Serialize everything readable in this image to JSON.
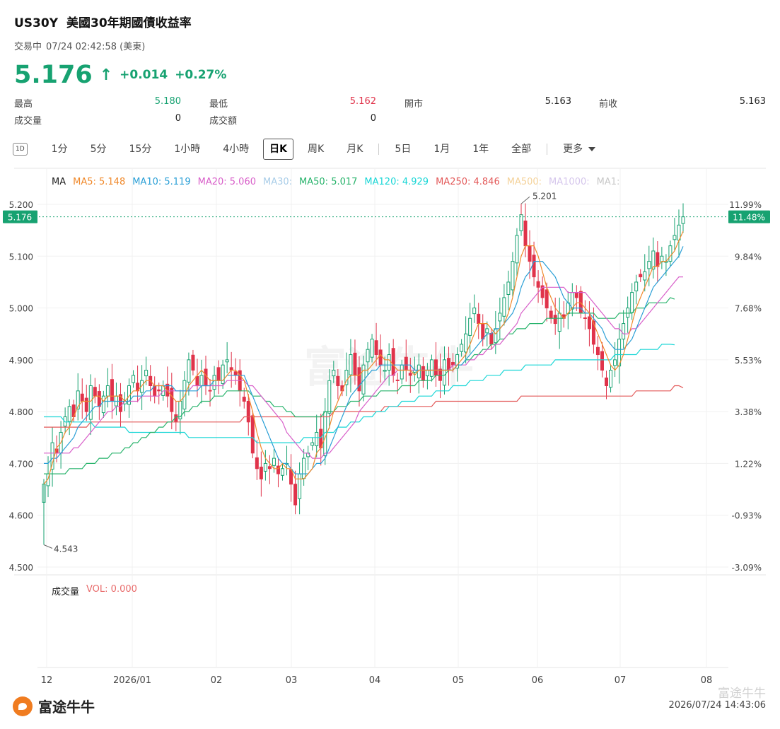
{
  "header": {
    "symbol": "US30Y",
    "name": "美國30年期國債收益率",
    "status": "交易中",
    "time": "07/24 02:42:58 (美東)",
    "price": "5.176",
    "change": "+0.014",
    "change_pct": "+0.27%",
    "up_color": "#17a271",
    "down_color": "#e0334a"
  },
  "stats": {
    "high_label": "最高",
    "high": "5.180",
    "low_label": "最低",
    "low": "5.162",
    "open_label": "開市",
    "open": "5.163",
    "prev_label": "前收",
    "prev": "5.163",
    "volume_label": "成交量",
    "volume": "0",
    "turnover_label": "成交額",
    "turnover": "0"
  },
  "periods": {
    "icon": "1D",
    "items": [
      "1分",
      "5分",
      "15分",
      "1小時",
      "4小時",
      "日K",
      "周K",
      "月K",
      "5日",
      "1月",
      "1年",
      "全部"
    ],
    "active": "日K",
    "more": "更多"
  },
  "legend": {
    "ma_label": "MA",
    "items": [
      {
        "text": "MA5: 5.148",
        "color": "#f0892b"
      },
      {
        "text": "MA10: 5.119",
        "color": "#2a9fd6"
      },
      {
        "text": "MA20: 5.060",
        "color": "#d85ec9"
      },
      {
        "text": "MA30:",
        "color": "#a9cde8"
      },
      {
        "text": "MA50: 5.017",
        "color": "#27b36b"
      },
      {
        "text": "MA120: 4.929",
        "color": "#19d6d6"
      },
      {
        "text": "MA250: 4.846",
        "color": "#e35a5a"
      },
      {
        "text": "MA500:",
        "color": "#f4d29a"
      },
      {
        "text": "MA1000:",
        "color": "#d5c6ec"
      },
      {
        "text": "MA1:",
        "color": "#c8c8c8"
      }
    ]
  },
  "volume": {
    "label": "成交量",
    "value": "VOL: 0.000",
    "color": "#e86a6a"
  },
  "chart_data": {
    "type": "candlestick",
    "y_left_ticks": [
      "5.200",
      "5.100",
      "5.000",
      "4.900",
      "4.800",
      "4.700",
      "4.600",
      "4.500"
    ],
    "y_left_values": [
      5.2,
      5.1,
      5.0,
      4.9,
      4.8,
      4.7,
      4.6,
      4.5
    ],
    "y_right_ticks": [
      "11.99%",
      "9.84%",
      "7.68%",
      "5.53%",
      "3.38%",
      "1.22%",
      "-0.93%",
      "-3.09%"
    ],
    "ylim": [
      4.5,
      5.2
    ],
    "x_ticks": [
      "12",
      "2026/01",
      "02",
      "03",
      "04",
      "05",
      "06",
      "07",
      "08"
    ],
    "current_price_label": "5.176",
    "current_pct_label": "11.48%",
    "current_value": 5.176,
    "max_label": "5.201",
    "min_label": "4.543",
    "max_value": 5.201,
    "min_value": 4.543,
    "closes": [
      4.66,
      4.68,
      4.74,
      4.72,
      4.76,
      4.79,
      4.81,
      4.79,
      4.84,
      4.82,
      4.8,
      4.85,
      4.83,
      4.81,
      4.83,
      4.85,
      4.82,
      4.83,
      4.8,
      4.82,
      4.85,
      4.87,
      4.84,
      4.86,
      4.88,
      4.85,
      4.83,
      4.84,
      4.85,
      4.83,
      4.8,
      4.78,
      4.82,
      4.86,
      4.9,
      4.88,
      4.85,
      4.87,
      4.85,
      4.84,
      4.87,
      4.86,
      4.89,
      4.9,
      4.88,
      4.87,
      4.84,
      4.82,
      4.78,
      4.72,
      4.69,
      4.67,
      4.7,
      4.69,
      4.71,
      4.68,
      4.69,
      4.7,
      4.66,
      4.62,
      4.68,
      4.71,
      4.72,
      4.74,
      4.76,
      4.73,
      4.8,
      4.86,
      4.88,
      4.85,
      4.84,
      4.88,
      4.91,
      4.87,
      4.84,
      4.89,
      4.92,
      4.94,
      4.91,
      4.89,
      4.88,
      4.91,
      4.87,
      4.86,
      4.89,
      4.88,
      4.87,
      4.88,
      4.89,
      4.86,
      4.88,
      4.9,
      4.87,
      4.86,
      4.9,
      4.88,
      4.89,
      4.91,
      4.93,
      4.95,
      4.98,
      5.0,
      4.97,
      4.94,
      4.96,
      4.93,
      4.96,
      4.99,
      5.02,
      5.05,
      5.09,
      5.14,
      5.18,
      5.12,
      5.09,
      5.06,
      5.04,
      5.02,
      5.0,
      4.98,
      4.97,
      4.99,
      4.98,
      5.01,
      5.03,
      5.02,
      4.99,
      4.98,
      4.96,
      4.93,
      4.91,
      4.88,
      4.85,
      4.88,
      4.9,
      4.94,
      4.97,
      5.0,
      5.03,
      5.05,
      5.06,
      5.07,
      5.09,
      5.11,
      5.08,
      5.1,
      5.09,
      5.12,
      5.14,
      5.16,
      5.176
    ],
    "ma5": [
      4.66,
      4.67,
      4.7,
      4.73,
      4.74,
      4.76,
      4.77,
      4.79,
      4.81,
      4.82,
      4.82,
      4.82,
      4.83,
      4.83,
      4.82,
      4.83,
      4.83,
      4.83,
      4.83,
      4.82,
      4.83,
      4.84,
      4.84,
      4.85,
      4.86,
      4.86,
      4.85,
      4.85,
      4.85,
      4.84,
      4.83,
      4.82,
      4.82,
      4.83,
      4.85,
      4.86,
      4.87,
      4.88,
      4.87,
      4.86,
      4.86,
      4.86,
      4.86,
      4.87,
      4.88,
      4.88,
      4.87,
      4.86,
      4.83,
      4.8,
      4.76,
      4.73,
      4.71,
      4.7,
      4.69,
      4.69,
      4.7,
      4.69,
      4.69,
      4.67,
      4.67,
      4.67,
      4.68,
      4.69,
      4.72,
      4.73,
      4.75,
      4.77,
      4.8,
      4.82,
      4.84,
      4.86,
      4.87,
      4.87,
      4.87,
      4.88,
      4.88,
      4.89,
      4.9,
      4.91,
      4.9,
      4.9,
      4.89,
      4.88,
      4.88,
      4.88,
      4.88,
      4.87,
      4.88,
      4.88,
      4.88,
      4.88,
      4.88,
      4.88,
      4.88,
      4.88,
      4.88,
      4.89,
      4.9,
      4.91,
      4.93,
      4.95,
      4.97,
      4.97,
      4.97,
      4.96,
      4.95,
      4.96,
      4.97,
      4.99,
      5.02,
      5.06,
      5.1,
      5.12,
      5.12,
      5.12,
      5.1,
      5.07,
      5.04,
      5.02,
      5.0,
      4.99,
      4.98,
      4.99,
      5.0,
      5.01,
      5.01,
      5.0,
      4.99,
      4.97,
      4.95,
      4.93,
      4.91,
      4.89,
      4.88,
      4.89,
      4.91,
      4.94,
      4.97,
      5.0,
      5.02,
      5.04,
      5.06,
      5.08,
      5.08,
      5.09,
      5.09,
      5.1,
      5.11,
      5.13,
      5.148
    ],
    "ma10": [
      4.7,
      4.7,
      4.71,
      4.71,
      4.72,
      4.73,
      4.74,
      4.75,
      4.77,
      4.78,
      4.79,
      4.8,
      4.81,
      4.81,
      4.82,
      4.82,
      4.82,
      4.82,
      4.82,
      4.82,
      4.82,
      4.83,
      4.83,
      4.83,
      4.84,
      4.84,
      4.85,
      4.85,
      4.85,
      4.85,
      4.85,
      4.84,
      4.84,
      4.84,
      4.84,
      4.84,
      4.84,
      4.85,
      4.85,
      4.85,
      4.86,
      4.86,
      4.86,
      4.87,
      4.87,
      4.87,
      4.87,
      4.87,
      4.85,
      4.83,
      4.81,
      4.79,
      4.77,
      4.75,
      4.73,
      4.71,
      4.7,
      4.7,
      4.69,
      4.68,
      4.68,
      4.68,
      4.68,
      4.69,
      4.7,
      4.7,
      4.71,
      4.73,
      4.75,
      4.77,
      4.79,
      4.81,
      4.83,
      4.84,
      4.85,
      4.86,
      4.87,
      4.88,
      4.88,
      4.89,
      4.89,
      4.89,
      4.89,
      4.89,
      4.89,
      4.89,
      4.89,
      4.88,
      4.88,
      4.88,
      4.88,
      4.88,
      4.88,
      4.88,
      4.88,
      4.88,
      4.88,
      4.89,
      4.89,
      4.9,
      4.91,
      4.92,
      4.93,
      4.94,
      4.95,
      4.95,
      4.96,
      4.96,
      4.97,
      4.98,
      4.99,
      5.01,
      5.04,
      5.06,
      5.07,
      5.09,
      5.09,
      5.09,
      5.08,
      5.07,
      5.06,
      5.04,
      5.02,
      5.01,
      5.0,
      5.0,
      5.0,
      4.99,
      4.99,
      4.98,
      4.97,
      4.96,
      4.94,
      4.93,
      4.92,
      4.92,
      4.92,
      4.93,
      4.94,
      4.96,
      4.98,
      5.0,
      5.02,
      5.04,
      5.05,
      5.06,
      5.07,
      5.08,
      5.09,
      5.1,
      5.119
    ],
    "ma20": [
      4.72,
      4.72,
      4.72,
      4.72,
      4.72,
      4.72,
      4.72,
      4.73,
      4.73,
      4.74,
      4.75,
      4.76,
      4.77,
      4.78,
      4.79,
      4.8,
      4.8,
      4.81,
      4.81,
      4.82,
      4.82,
      4.82,
      4.82,
      4.83,
      4.83,
      4.83,
      4.83,
      4.83,
      4.84,
      4.84,
      4.84,
      4.84,
      4.84,
      4.84,
      4.84,
      4.85,
      4.85,
      4.85,
      4.85,
      4.85,
      4.85,
      4.85,
      4.85,
      4.86,
      4.86,
      4.86,
      4.86,
      4.86,
      4.85,
      4.85,
      4.84,
      4.83,
      4.82,
      4.81,
      4.8,
      4.79,
      4.78,
      4.76,
      4.75,
      4.74,
      4.73,
      4.72,
      4.72,
      4.71,
      4.71,
      4.71,
      4.72,
      4.72,
      4.73,
      4.74,
      4.75,
      4.76,
      4.77,
      4.78,
      4.8,
      4.81,
      4.82,
      4.83,
      4.84,
      4.85,
      4.86,
      4.87,
      4.87,
      4.88,
      4.88,
      4.88,
      4.88,
      4.88,
      4.88,
      4.88,
      4.88,
      4.88,
      4.88,
      4.88,
      4.88,
      4.88,
      4.89,
      4.89,
      4.89,
      4.89,
      4.9,
      4.9,
      4.91,
      4.91,
      4.92,
      4.92,
      4.93,
      4.93,
      4.94,
      4.95,
      4.96,
      4.97,
      4.99,
      5.0,
      5.01,
      5.02,
      5.03,
      5.04,
      5.04,
      5.04,
      5.04,
      5.04,
      5.04,
      5.03,
      5.03,
      5.03,
      5.03,
      5.03,
      5.02,
      5.01,
      5.0,
      4.99,
      4.98,
      4.97,
      4.96,
      4.96,
      4.95,
      4.95,
      4.96,
      4.96,
      4.97,
      4.98,
      4.99,
      5.0,
      5.01,
      5.02,
      5.03,
      5.04,
      5.05,
      5.06,
      5.06
    ],
    "ma50": [
      4.68,
      4.68,
      4.68,
      4.68,
      4.68,
      4.68,
      4.69,
      4.69,
      4.69,
      4.69,
      4.7,
      4.7,
      4.7,
      4.71,
      4.71,
      4.71,
      4.72,
      4.72,
      4.72,
      4.73,
      4.73,
      4.74,
      4.74,
      4.75,
      4.75,
      4.76,
      4.76,
      4.77,
      4.77,
      4.78,
      4.78,
      4.79,
      4.79,
      4.8,
      4.8,
      4.81,
      4.81,
      4.82,
      4.82,
      4.82,
      4.83,
      4.83,
      4.83,
      4.84,
      4.84,
      4.84,
      4.84,
      4.84,
      4.84,
      4.83,
      4.83,
      4.83,
      4.82,
      4.82,
      4.81,
      4.81,
      4.81,
      4.8,
      4.8,
      4.79,
      4.79,
      4.79,
      4.79,
      4.79,
      4.79,
      4.79,
      4.8,
      4.8,
      4.8,
      4.81,
      4.81,
      4.81,
      4.82,
      4.82,
      4.82,
      4.83,
      4.83,
      4.83,
      4.83,
      4.84,
      4.84,
      4.84,
      4.84,
      4.84,
      4.85,
      4.85,
      4.85,
      4.85,
      4.86,
      4.86,
      4.86,
      4.86,
      4.87,
      4.87,
      4.87,
      4.88,
      4.88,
      4.89,
      4.89,
      4.9,
      4.9,
      4.91,
      4.91,
      4.92,
      4.92,
      4.93,
      4.93,
      4.94,
      4.94,
      4.95,
      4.95,
      4.96,
      4.96,
      4.96,
      4.97,
      4.97,
      4.97,
      4.97,
      4.98,
      4.98,
      4.98,
      4.98,
      4.98,
      4.99,
      4.99,
      4.99,
      4.99,
      4.99,
      4.99,
      4.99,
      4.98,
      4.98,
      4.98,
      4.98,
      4.98,
      4.99,
      4.99,
      4.99,
      4.99,
      5.0,
      5.0,
      5.0,
      5.01,
      5.01,
      5.01,
      5.01,
      5.01,
      5.02,
      5.017
    ],
    "ma120": [
      4.79,
      4.79,
      4.79,
      4.79,
      4.79,
      4.78,
      4.78,
      4.78,
      4.78,
      4.78,
      4.78,
      4.78,
      4.77,
      4.77,
      4.77,
      4.77,
      4.77,
      4.77,
      4.77,
      4.77,
      4.76,
      4.76,
      4.76,
      4.76,
      4.76,
      4.76,
      4.76,
      4.76,
      4.76,
      4.76,
      4.76,
      4.76,
      4.76,
      4.76,
      4.75,
      4.75,
      4.75,
      4.75,
      4.75,
      4.75,
      4.75,
      4.75,
      4.75,
      4.75,
      4.75,
      4.75,
      4.75,
      4.75,
      4.75,
      4.75,
      4.74,
      4.74,
      4.74,
      4.74,
      4.74,
      4.74,
      4.74,
      4.74,
      4.74,
      4.74,
      4.74,
      4.75,
      4.75,
      4.75,
      4.75,
      4.75,
      4.76,
      4.76,
      4.76,
      4.77,
      4.77,
      4.77,
      4.78,
      4.78,
      4.78,
      4.79,
      4.79,
      4.79,
      4.8,
      4.8,
      4.8,
      4.81,
      4.81,
      4.81,
      4.82,
      4.82,
      4.82,
      4.82,
      4.83,
      4.83,
      4.83,
      4.83,
      4.84,
      4.84,
      4.84,
      4.84,
      4.85,
      4.85,
      4.85,
      4.85,
      4.86,
      4.86,
      4.86,
      4.86,
      4.87,
      4.87,
      4.87,
      4.87,
      4.88,
      4.88,
      4.88,
      4.88,
      4.88,
      4.89,
      4.89,
      4.89,
      4.89,
      4.89,
      4.89,
      4.89,
      4.9,
      4.9,
      4.9,
      4.9,
      4.9,
      4.9,
      4.9,
      4.9,
      4.9,
      4.9,
      4.9,
      4.9,
      4.9,
      4.9,
      4.91,
      4.91,
      4.91,
      4.91,
      4.91,
      4.91,
      4.92,
      4.92,
      4.92,
      4.92,
      4.92,
      4.93,
      4.93,
      4.93,
      4.929
    ],
    "ma250": [
      4.77,
      4.77,
      4.77,
      4.77,
      4.77,
      4.77,
      4.77,
      4.77,
      4.77,
      4.77,
      4.77,
      4.78,
      4.78,
      4.78,
      4.78,
      4.78,
      4.78,
      4.78,
      4.78,
      4.78,
      4.78,
      4.78,
      4.78,
      4.78,
      4.78,
      4.78,
      4.78,
      4.78,
      4.78,
      4.78,
      4.78,
      4.78,
      4.78,
      4.78,
      4.78,
      4.78,
      4.78,
      4.78,
      4.78,
      4.78,
      4.78,
      4.78,
      4.78,
      4.78,
      4.78,
      4.78,
      4.78,
      4.79,
      4.79,
      4.79,
      4.79,
      4.79,
      4.79,
      4.79,
      4.79,
      4.79,
      4.79,
      4.79,
      4.79,
      4.79,
      4.79,
      4.79,
      4.79,
      4.79,
      4.79,
      4.79,
      4.79,
      4.79,
      4.8,
      4.8,
      4.8,
      4.8,
      4.8,
      4.8,
      4.8,
      4.8,
      4.8,
      4.8,
      4.8,
      4.8,
      4.81,
      4.81,
      4.81,
      4.81,
      4.81,
      4.81,
      4.81,
      4.81,
      4.81,
      4.81,
      4.81,
      4.81,
      4.82,
      4.82,
      4.82,
      4.82,
      4.82,
      4.82,
      4.82,
      4.82,
      4.82,
      4.82,
      4.82,
      4.82,
      4.82,
      4.82,
      4.82,
      4.82,
      4.82,
      4.82,
      4.82,
      4.82,
      4.83,
      4.83,
      4.83,
      4.83,
      4.83,
      4.83,
      4.83,
      4.83,
      4.83,
      4.83,
      4.83,
      4.83,
      4.83,
      4.83,
      4.83,
      4.83,
      4.83,
      4.83,
      4.83,
      4.83,
      4.83,
      4.83,
      4.83,
      4.83,
      4.83,
      4.83,
      4.83,
      4.84,
      4.84,
      4.84,
      4.84,
      4.84,
      4.84,
      4.84,
      4.84,
      4.84,
      4.85,
      4.85,
      4.846
    ]
  },
  "footer": {
    "brand": "富途牛牛",
    "timestamp": "2026/07/24 14:43:06",
    "watermark": "富途牛牛"
  }
}
